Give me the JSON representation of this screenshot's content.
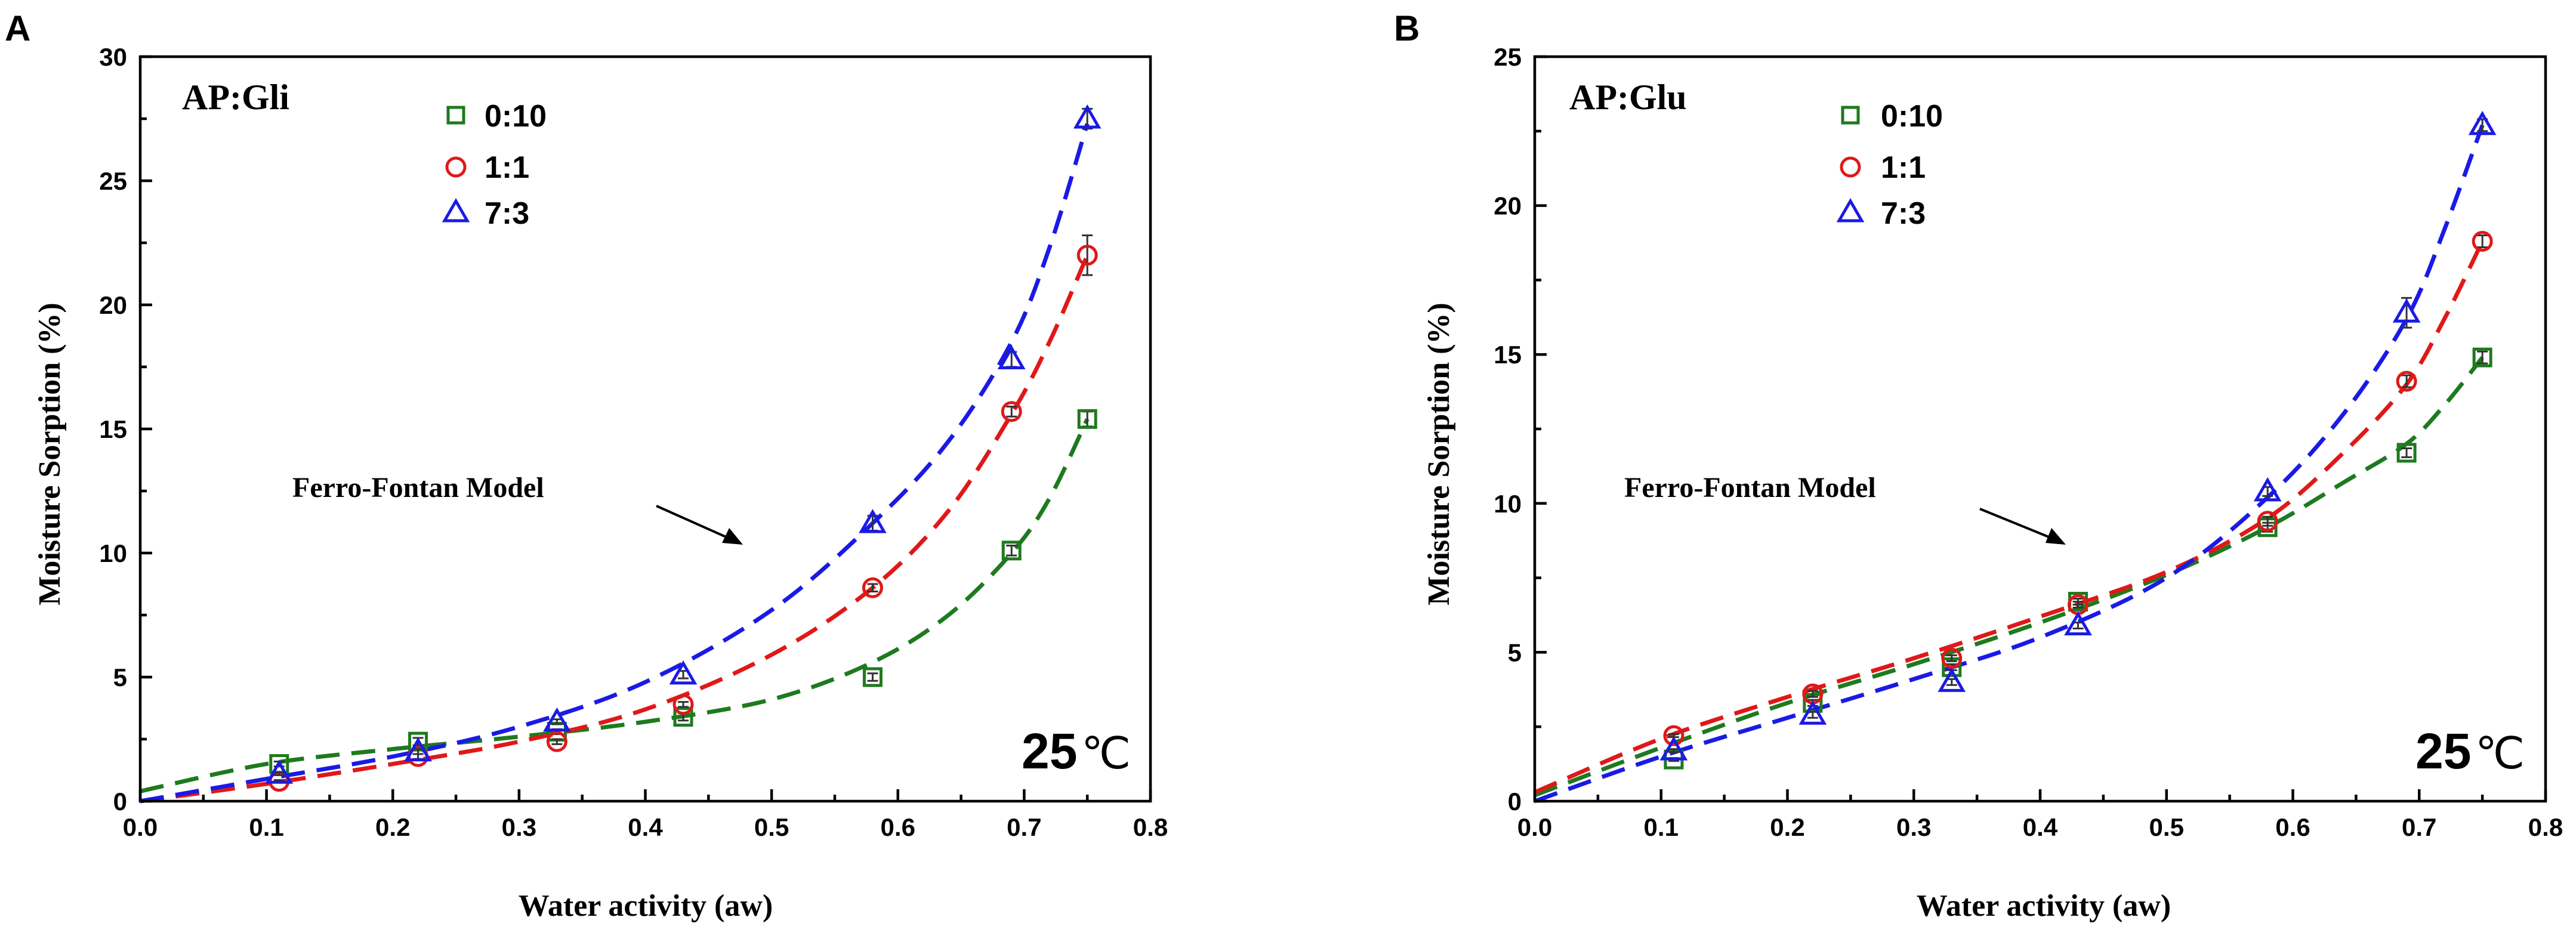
{
  "chart_data": [
    {
      "panel": "A",
      "type": "scatter",
      "title": "AP:Gli",
      "xlabel": "Water activity (aw)",
      "ylabel": "Moisture Sorption (%)",
      "xlim": [
        0.0,
        0.8
      ],
      "ylim": [
        0,
        30
      ],
      "xticks": [
        "0.0",
        "0.1",
        "0.2",
        "0.3",
        "0.4",
        "0.5",
        "0.6",
        "0.7",
        "0.8"
      ],
      "yticks": [
        "0",
        "5",
        "10",
        "15",
        "20",
        "25",
        "30"
      ],
      "temperature_num": "25",
      "temperature_unit": "℃",
      "annotation": "Ferro-Fontan Model",
      "series": [
        {
          "name": "0:10",
          "marker": "square",
          "color": "#1e7a1e",
          "x": [
            0.11,
            0.22,
            0.33,
            0.43,
            0.58,
            0.69,
            0.75
          ],
          "y": [
            1.5,
            2.4,
            2.8,
            3.4,
            5.0,
            10.1,
            15.4
          ],
          "err": [
            0.1,
            0.15,
            0.1,
            0.15,
            0.15,
            0.2,
            0.3
          ]
        },
        {
          "name": "1:1",
          "marker": "circle",
          "color": "#e01818",
          "x": [
            0.11,
            0.22,
            0.33,
            0.43,
            0.58,
            0.69,
            0.75
          ],
          "y": [
            0.8,
            1.8,
            2.4,
            3.9,
            8.6,
            15.7,
            22.0
          ],
          "err": [
            0.05,
            0.1,
            0.1,
            0.1,
            0.15,
            0.2,
            0.8
          ]
        },
        {
          "name": "7:3",
          "marker": "triangle",
          "color": "#1a1ae6",
          "x": [
            0.11,
            0.22,
            0.33,
            0.43,
            0.58,
            0.69,
            0.75
          ],
          "y": [
            1.1,
            2.0,
            3.2,
            5.1,
            11.2,
            17.8,
            27.5
          ],
          "err": [
            0.05,
            0.1,
            0.1,
            0.15,
            0.3,
            0.3,
            0.4
          ]
        }
      ],
      "fits": [
        {
          "name": "0:10",
          "color": "#1e7a1e",
          "x": [
            0.0,
            0.1,
            0.2,
            0.3,
            0.4,
            0.5,
            0.58,
            0.64,
            0.69,
            0.72,
            0.75
          ],
          "y": [
            0.4,
            1.5,
            2.1,
            2.6,
            3.2,
            4.1,
            5.6,
            7.5,
            10.0,
            12.2,
            15.4
          ]
        },
        {
          "name": "1:1",
          "color": "#e01818",
          "x": [
            0.0,
            0.1,
            0.2,
            0.3,
            0.4,
            0.5,
            0.58,
            0.64,
            0.69,
            0.72,
            0.75
          ],
          "y": [
            0.0,
            0.7,
            1.5,
            2.4,
            3.7,
            5.9,
            8.6,
            11.7,
            15.6,
            18.5,
            22.0
          ]
        },
        {
          "name": "7:3",
          "color": "#1a1ae6",
          "x": [
            0.0,
            0.1,
            0.2,
            0.3,
            0.4,
            0.5,
            0.58,
            0.64,
            0.69,
            0.72,
            0.75
          ],
          "y": [
            0.0,
            0.9,
            1.8,
            3.0,
            4.8,
            7.7,
            11.2,
            14.5,
            18.5,
            22.3,
            27.3
          ]
        }
      ]
    },
    {
      "panel": "B",
      "type": "scatter",
      "title": "AP:Glu",
      "xlabel": "Water activity (aw)",
      "ylabel": "Moisture Sorption (%)",
      "xlim": [
        0.0,
        0.8
      ],
      "ylim": [
        0,
        25
      ],
      "xticks": [
        "0.0",
        "0.1",
        "0.2",
        "0.3",
        "0.4",
        "0.5",
        "0.6",
        "0.7",
        "0.8"
      ],
      "yticks": [
        "0",
        "5",
        "10",
        "15",
        "20",
        "25"
      ],
      "temperature_num": "25",
      "temperature_unit": "℃",
      "annotation": "Ferro-Fontan Model",
      "series": [
        {
          "name": "0:10",
          "marker": "square",
          "color": "#1e7a1e",
          "x": [
            0.11,
            0.22,
            0.33,
            0.43,
            0.58,
            0.69,
            0.75
          ],
          "y": [
            1.4,
            3.3,
            4.5,
            6.7,
            9.2,
            11.7,
            14.9
          ],
          "err": [
            0.05,
            0.1,
            0.1,
            0.1,
            0.15,
            0.15,
            0.2
          ]
        },
        {
          "name": "1:1",
          "marker": "circle",
          "color": "#e01818",
          "x": [
            0.11,
            0.22,
            0.33,
            0.43,
            0.58,
            0.69,
            0.75
          ],
          "y": [
            2.2,
            3.6,
            4.8,
            6.6,
            9.4,
            14.1,
            18.8
          ],
          "err": [
            0.05,
            0.1,
            0.1,
            0.1,
            0.15,
            0.2,
            0.2
          ]
        },
        {
          "name": "7:3",
          "marker": "triangle",
          "color": "#1a1ae6",
          "x": [
            0.11,
            0.22,
            0.33,
            0.43,
            0.58,
            0.69,
            0.75
          ],
          "y": [
            1.7,
            2.9,
            4.0,
            5.9,
            10.4,
            16.4,
            22.7
          ],
          "err": [
            0.05,
            0.1,
            0.1,
            0.1,
            0.15,
            0.5,
            0.2
          ]
        }
      ],
      "fits": [
        {
          "name": "0:10",
          "color": "#1e7a1e",
          "x": [
            0.0,
            0.1,
            0.2,
            0.3,
            0.4,
            0.5,
            0.58,
            0.64,
            0.69,
            0.72,
            0.75
          ],
          "y": [
            0.2,
            1.8,
            3.3,
            4.6,
            6.0,
            7.6,
            9.2,
            10.7,
            12.0,
            13.3,
            14.9
          ]
        },
        {
          "name": "1:1",
          "color": "#e01818",
          "x": [
            0.0,
            0.1,
            0.2,
            0.3,
            0.4,
            0.5,
            0.58,
            0.64,
            0.69,
            0.72,
            0.75
          ],
          "y": [
            0.3,
            2.1,
            3.5,
            4.8,
            6.2,
            7.7,
            9.5,
            11.7,
            14.0,
            16.2,
            18.8
          ]
        },
        {
          "name": "7:3",
          "color": "#1a1ae6",
          "x": [
            0.0,
            0.1,
            0.2,
            0.3,
            0.4,
            0.5,
            0.58,
            0.64,
            0.69,
            0.72,
            0.75
          ],
          "y": [
            0.0,
            1.5,
            2.8,
            4.1,
            5.5,
            7.5,
            10.2,
            13.0,
            16.2,
            19.2,
            22.7
          ]
        }
      ]
    }
  ]
}
